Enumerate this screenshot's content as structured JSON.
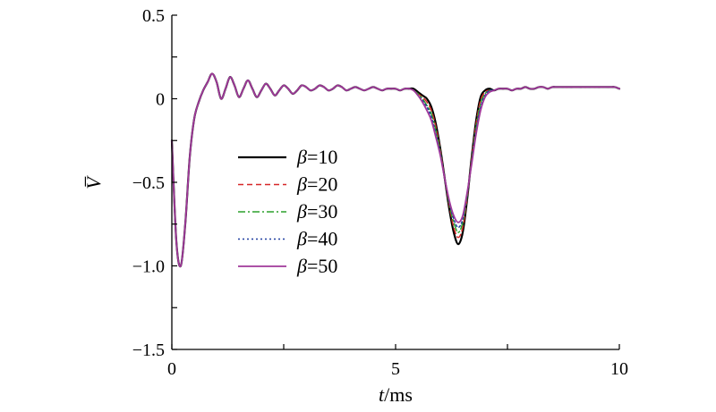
{
  "chart_data": {
    "type": "line",
    "xlabel_var": "t",
    "xlabel_unit": "/ms",
    "ylabel": "V̅",
    "xlim": [
      0,
      10
    ],
    "ylim": [
      -1.5,
      0.5
    ],
    "xticks": [
      {
        "v": 0,
        "label": "0"
      },
      {
        "v": 5,
        "label": "5"
      },
      {
        "v": 10,
        "label": "10"
      }
    ],
    "yticks": [
      {
        "v": 0.5,
        "label": "0.5"
      },
      {
        "v": 0,
        "label": "0"
      },
      {
        "v": -0.5,
        "label": "−0.5"
      },
      {
        "v": -1.0,
        "label": "−1.0"
      },
      {
        "v": -1.5,
        "label": "−1.5"
      }
    ],
    "x": [
      0.0,
      0.1,
      0.2,
      0.3,
      0.4,
      0.5,
      0.6,
      0.7,
      0.8,
      0.9,
      1.0,
      1.1,
      1.2,
      1.3,
      1.4,
      1.5,
      1.6,
      1.7,
      1.8,
      1.9,
      2.0,
      2.1,
      2.2,
      2.3,
      2.4,
      2.5,
      2.6,
      2.7,
      2.8,
      2.9,
      3.0,
      3.1,
      3.2,
      3.3,
      3.4,
      3.5,
      3.6,
      3.7,
      3.8,
      3.9,
      4.0,
      4.1,
      4.2,
      4.3,
      4.4,
      4.5,
      4.6,
      4.7,
      4.8,
      4.9,
      5.0,
      5.1,
      5.2,
      5.3,
      5.4,
      5.5,
      5.6,
      5.7,
      5.8,
      5.9,
      6.0,
      6.1,
      6.2,
      6.3,
      6.4,
      6.5,
      6.6,
      6.7,
      6.8,
      6.9,
      7.0,
      7.1,
      7.2,
      7.3,
      7.4,
      7.5,
      7.6,
      7.7,
      7.8,
      7.9,
      8.0,
      8.1,
      8.2,
      8.3,
      8.4,
      8.5,
      8.6,
      8.7,
      8.8,
      8.9,
      9.0,
      9.1,
      9.2,
      9.3,
      9.4,
      9.5,
      9.6,
      9.7,
      9.8,
      9.9,
      10.0
    ],
    "series": [
      {
        "name": "β=10",
        "color": "#000000",
        "dash": "",
        "width": 2.2,
        "values": [
          -0.25,
          -0.85,
          -1.0,
          -0.75,
          -0.35,
          -0.12,
          -0.02,
          0.05,
          0.1,
          0.15,
          0.1,
          0.0,
          0.06,
          0.13,
          0.08,
          0.01,
          0.06,
          0.11,
          0.06,
          0.01,
          0.05,
          0.09,
          0.06,
          0.02,
          0.05,
          0.08,
          0.06,
          0.03,
          0.05,
          0.08,
          0.07,
          0.05,
          0.06,
          0.08,
          0.07,
          0.05,
          0.06,
          0.08,
          0.07,
          0.05,
          0.06,
          0.07,
          0.06,
          0.05,
          0.06,
          0.07,
          0.06,
          0.05,
          0.06,
          0.06,
          0.06,
          0.05,
          0.06,
          0.06,
          0.06,
          0.04,
          0.02,
          0.0,
          -0.05,
          -0.15,
          -0.3,
          -0.48,
          -0.66,
          -0.8,
          -0.87,
          -0.8,
          -0.6,
          -0.35,
          -0.13,
          0.01,
          0.05,
          0.06,
          0.05,
          0.06,
          0.06,
          0.06,
          0.05,
          0.06,
          0.06,
          0.07,
          0.06,
          0.06,
          0.07,
          0.07,
          0.06,
          0.07,
          0.07,
          0.07,
          0.07,
          0.07,
          0.07,
          0.07,
          0.07,
          0.07,
          0.07,
          0.07,
          0.07,
          0.07,
          0.07,
          0.07,
          0.06
        ]
      },
      {
        "name": "β=20",
        "color": "#d62728",
        "dash": "6,4",
        "width": 1.5,
        "values": [
          -0.25,
          -0.85,
          -1.0,
          -0.75,
          -0.35,
          -0.12,
          -0.02,
          0.05,
          0.1,
          0.15,
          0.1,
          0.0,
          0.06,
          0.13,
          0.08,
          0.01,
          0.06,
          0.11,
          0.06,
          0.01,
          0.05,
          0.09,
          0.06,
          0.02,
          0.05,
          0.08,
          0.06,
          0.03,
          0.05,
          0.08,
          0.07,
          0.05,
          0.06,
          0.08,
          0.07,
          0.05,
          0.06,
          0.08,
          0.07,
          0.05,
          0.06,
          0.07,
          0.06,
          0.05,
          0.06,
          0.07,
          0.06,
          0.05,
          0.06,
          0.06,
          0.06,
          0.05,
          0.06,
          0.06,
          0.05,
          0.03,
          0.01,
          -0.02,
          -0.07,
          -0.17,
          -0.31,
          -0.48,
          -0.64,
          -0.77,
          -0.83,
          -0.77,
          -0.59,
          -0.36,
          -0.15,
          -0.01,
          0.04,
          0.05,
          0.05,
          0.06,
          0.06,
          0.06,
          0.05,
          0.06,
          0.06,
          0.07,
          0.06,
          0.06,
          0.07,
          0.07,
          0.06,
          0.07,
          0.07,
          0.07,
          0.07,
          0.07,
          0.07,
          0.07,
          0.07,
          0.07,
          0.07,
          0.07,
          0.07,
          0.07,
          0.07,
          0.07,
          0.06
        ]
      },
      {
        "name": "β=30",
        "color": "#2ca02c",
        "dash": "8,3,2,3",
        "width": 1.5,
        "values": [
          -0.25,
          -0.85,
          -1.0,
          -0.75,
          -0.35,
          -0.12,
          -0.02,
          0.05,
          0.1,
          0.15,
          0.1,
          0.0,
          0.06,
          0.13,
          0.08,
          0.01,
          0.06,
          0.11,
          0.06,
          0.01,
          0.05,
          0.09,
          0.06,
          0.02,
          0.05,
          0.08,
          0.06,
          0.03,
          0.05,
          0.08,
          0.07,
          0.05,
          0.06,
          0.08,
          0.07,
          0.05,
          0.06,
          0.08,
          0.07,
          0.05,
          0.06,
          0.07,
          0.06,
          0.05,
          0.06,
          0.07,
          0.06,
          0.05,
          0.06,
          0.06,
          0.06,
          0.05,
          0.06,
          0.06,
          0.05,
          0.03,
          0.0,
          -0.04,
          -0.09,
          -0.19,
          -0.32,
          -0.48,
          -0.63,
          -0.74,
          -0.8,
          -0.74,
          -0.58,
          -0.37,
          -0.17,
          -0.03,
          0.03,
          0.05,
          0.05,
          0.06,
          0.06,
          0.06,
          0.05,
          0.06,
          0.06,
          0.07,
          0.06,
          0.06,
          0.07,
          0.07,
          0.06,
          0.07,
          0.07,
          0.07,
          0.07,
          0.07,
          0.07,
          0.07,
          0.07,
          0.07,
          0.07,
          0.07,
          0.07,
          0.07,
          0.07,
          0.07,
          0.06
        ]
      },
      {
        "name": "β=40",
        "color": "#1f3fa0",
        "dash": "2,3",
        "width": 1.5,
        "values": [
          -0.25,
          -0.85,
          -1.0,
          -0.75,
          -0.35,
          -0.12,
          -0.02,
          0.05,
          0.1,
          0.15,
          0.1,
          0.0,
          0.06,
          0.13,
          0.08,
          0.01,
          0.06,
          0.11,
          0.06,
          0.01,
          0.05,
          0.09,
          0.06,
          0.02,
          0.05,
          0.08,
          0.06,
          0.03,
          0.05,
          0.08,
          0.07,
          0.05,
          0.06,
          0.08,
          0.07,
          0.05,
          0.06,
          0.08,
          0.07,
          0.05,
          0.06,
          0.07,
          0.06,
          0.05,
          0.06,
          0.07,
          0.06,
          0.05,
          0.06,
          0.06,
          0.06,
          0.05,
          0.06,
          0.06,
          0.05,
          0.02,
          -0.01,
          -0.05,
          -0.11,
          -0.21,
          -0.33,
          -0.48,
          -0.62,
          -0.72,
          -0.77,
          -0.72,
          -0.57,
          -0.38,
          -0.19,
          -0.05,
          0.02,
          0.05,
          0.05,
          0.06,
          0.06,
          0.06,
          0.05,
          0.06,
          0.06,
          0.07,
          0.06,
          0.06,
          0.07,
          0.07,
          0.06,
          0.07,
          0.07,
          0.07,
          0.07,
          0.07,
          0.07,
          0.07,
          0.07,
          0.07,
          0.07,
          0.07,
          0.07,
          0.07,
          0.07,
          0.07,
          0.06
        ]
      },
      {
        "name": "β=50",
        "color": "#a0389a",
        "dash": "",
        "width": 1.8,
        "values": [
          -0.25,
          -0.85,
          -1.0,
          -0.75,
          -0.35,
          -0.12,
          -0.02,
          0.05,
          0.1,
          0.15,
          0.1,
          0.0,
          0.06,
          0.13,
          0.08,
          0.01,
          0.06,
          0.11,
          0.06,
          0.01,
          0.05,
          0.09,
          0.06,
          0.02,
          0.05,
          0.08,
          0.06,
          0.03,
          0.05,
          0.08,
          0.07,
          0.05,
          0.06,
          0.08,
          0.07,
          0.05,
          0.06,
          0.08,
          0.07,
          0.05,
          0.06,
          0.07,
          0.06,
          0.05,
          0.06,
          0.07,
          0.06,
          0.05,
          0.06,
          0.06,
          0.06,
          0.05,
          0.06,
          0.06,
          0.05,
          0.02,
          -0.02,
          -0.07,
          -0.13,
          -0.23,
          -0.34,
          -0.48,
          -0.61,
          -0.7,
          -0.74,
          -0.7,
          -0.56,
          -0.39,
          -0.21,
          -0.07,
          0.01,
          0.04,
          0.05,
          0.06,
          0.06,
          0.06,
          0.05,
          0.06,
          0.06,
          0.07,
          0.06,
          0.06,
          0.07,
          0.07,
          0.06,
          0.07,
          0.07,
          0.07,
          0.07,
          0.07,
          0.07,
          0.07,
          0.07,
          0.07,
          0.07,
          0.07,
          0.07,
          0.07,
          0.07,
          0.07,
          0.06
        ]
      }
    ],
    "legend": {
      "placement": "center-left",
      "entries": [
        {
          "symbol": "β",
          "value": "=10"
        },
        {
          "symbol": "β",
          "value": "=20"
        },
        {
          "symbol": "β",
          "value": "=30"
        },
        {
          "symbol": "β",
          "value": "=40"
        },
        {
          "symbol": "β",
          "value": "=50"
        }
      ]
    },
    "grid": false
  }
}
